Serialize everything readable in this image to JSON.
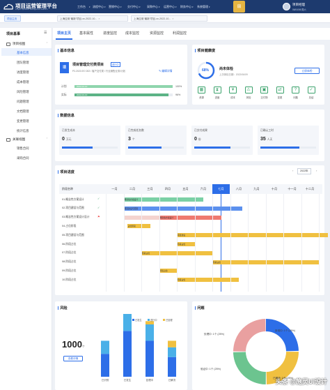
{
  "header": {
    "brand": "项目运营管理平台",
    "brand_sub": "Project Operation Management Platform",
    "nav": [
      "工作台",
      "流程中心",
      "营销中心",
      "交付中心",
      "采购中心",
      "运营中心",
      "财务中心",
      "系统管理"
    ],
    "user_name": "项目经理",
    "user_date": "06/04/06 周六"
  },
  "tabs": [
    {
      "label": "项目主页"
    },
    {
      "label": "上海应用“最新”项目-xx-2022-10..."
    },
    {
      "label": "上海应用“最新”项目-xx-2022-10..."
    }
  ],
  "sidebar": {
    "title": "项目基事",
    "menu": [
      {
        "label": "项目视图",
        "group": true
      },
      {
        "label": "基本信息"
      },
      {
        "label": "团队管理"
      },
      {
        "label": "进度管理"
      },
      {
        "label": "成本管理"
      },
      {
        "label": "风险管理"
      },
      {
        "label": "问题管理"
      },
      {
        "label": "文档管理"
      },
      {
        "label": "变更管理"
      },
      {
        "label": "统计信息"
      },
      {
        "label": "关联视图",
        "group": true
      },
      {
        "label": "销售合同"
      },
      {
        "label": "采购合同"
      }
    ]
  },
  "content_tabs": [
    "项目主页",
    "基本属性",
    "进度监控",
    "成本监控",
    "资源监控",
    "利润监控"
  ],
  "basic": {
    "title": "基本信息",
    "badge": "项",
    "proj_name": "项目管理交付类项目",
    "proj_tag": "进行中",
    "meta": "P2-2021/07/-002 / 客户交付类 / 行业销售业务/计划",
    "edit": "编辑详情",
    "plan_label": "计划",
    "plan_dates": "2022-02-10",
    "plan_pct": "100%",
    "actual_label": "实际",
    "actual_dates": "2022-02-10",
    "actual_pct": "96%",
    "plan_ratio": 1.0,
    "actual_ratio": 0.96
  },
  "health": {
    "title": "项目健康度",
    "pct": "68%",
    "status": "尚未体检",
    "date": "上次体检日期：2022/06/09",
    "btn": "立即体检",
    "items": [
      "资源",
      "进度",
      "成本",
      "风险",
      "交付物",
      "变更",
      "问题",
      "总结"
    ]
  },
  "stats": {
    "title": "数据信息",
    "cards": [
      {
        "label": "已发生成本",
        "value": "0",
        "unit": "万元",
        "ratio": 0.55
      },
      {
        "label": "已完成任务数",
        "value": "3",
        "unit": "个",
        "ratio": 0.6
      },
      {
        "label": "已交付成果",
        "value": "0",
        "unit": "份",
        "ratio": 0.65
      },
      {
        "label": "已确认工时",
        "value": "35",
        "unit": "人天",
        "ratio": 0.7
      }
    ]
  },
  "gantt": {
    "title": "项目进度",
    "year": "2022年",
    "col_label": "阶段名称",
    "months": [
      "一月",
      "二月",
      "三月",
      "四月",
      "五月",
      "六月",
      "七月",
      "八月",
      "九月",
      "十月",
      "十一月",
      "十二月"
    ],
    "rows": [
      "01.概念性方案设计",
      "02.项目建设与范围",
      "03.概念性方案设计设计",
      "04.占位阶段",
      "05.项目建设与范围",
      "06.阶段占位",
      "07.阶段占位",
      "08.阶段占位",
      "09.阶段占位",
      "10.阶段占位"
    ],
    "bar_labels": [
      "概念性方案设计",
      "项目建设与范围",
      "概念性方案设计",
      "占位阶段",
      "项目建设",
      "阶段占位",
      "阶段占位",
      "阶段占位",
      "阶段占位",
      "阶段占位"
    ]
  },
  "risk": {
    "title": "风险",
    "count": "1000",
    "unit": "个",
    "btn": "查看详情",
    "legend": [
      "已发生",
      "进行中",
      "已处理"
    ],
    "groups": [
      {
        "label": "已识别",
        "values": [
          70,
          40,
          0
        ]
      },
      {
        "label": "已发生",
        "values": [
          140,
          80,
          0
        ]
      },
      {
        "label": "处理中",
        "values": [
          110,
          50,
          10
        ]
      },
      {
        "label": "已解决",
        "values": [
          60,
          30,
          20
        ]
      }
    ],
    "colors": [
      "#2d6ee8",
      "#4ab0e8",
      "#f0c040"
    ]
  },
  "issue": {
    "title": "问题",
    "segments": [
      {
        "label": "新增中: 1个 (25%)"
      },
      {
        "label": "处理中: 1个 (25%)"
      },
      {
        "label": "已解决: 1个 (25%)"
      },
      {
        "label": "验证中: 1个 (25%)"
      }
    ],
    "colors": [
      "#2d6ee8",
      "#f0c040",
      "#6cc48f",
      "#e9a0a0"
    ]
  },
  "watermark": "头条 @施灵UI设计"
}
